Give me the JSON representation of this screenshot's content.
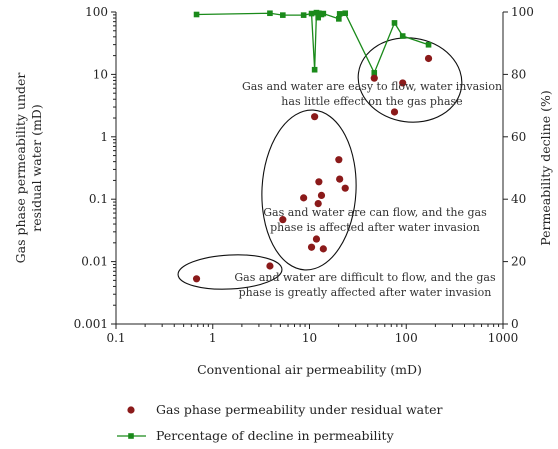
{
  "chart_data": {
    "type": "scatter",
    "xlabel": "Conventional air permeability (mD)",
    "ylabel_left": [
      "Gas phase permeability under",
      "residual water (mD)"
    ],
    "ylabel_right": "Permeability decline (%)",
    "x_scale": "log",
    "y_scale_left": "log",
    "xlim": [
      0.1,
      1000
    ],
    "ylim_left": [
      0.001,
      100
    ],
    "ylim_right": [
      0,
      100
    ],
    "x_ticks": [
      "0.1",
      "1",
      "10",
      "100",
      "1000"
    ],
    "y_ticks_left": [
      "0.001",
      "0.01",
      "0.1",
      "1",
      "10",
      "100"
    ],
    "y_ticks_right": [
      "0",
      "20",
      "40",
      "60",
      "80",
      "100"
    ],
    "grid": false,
    "legend_position": "bottom",
    "series": [
      {
        "name": "Gas phase permeability under residual water",
        "color": "#8b1a1a",
        "marker": "circle",
        "axis": "left",
        "points": [
          {
            "x": 0.68,
            "y": 0.0053
          },
          {
            "x": 3.9,
            "y": 0.0085
          },
          {
            "x": 5.3,
            "y": 0.047
          },
          {
            "x": 8.7,
            "y": 0.105
          },
          {
            "x": 10.5,
            "y": 0.017
          },
          {
            "x": 11.3,
            "y": 2.1
          },
          {
            "x": 11.8,
            "y": 0.023
          },
          {
            "x": 12.3,
            "y": 0.085
          },
          {
            "x": 12.5,
            "y": 0.19
          },
          {
            "x": 13.3,
            "y": 0.115
          },
          {
            "x": 13.9,
            "y": 0.016
          },
          {
            "x": 20.1,
            "y": 0.43
          },
          {
            "x": 20.5,
            "y": 0.21
          },
          {
            "x": 23.4,
            "y": 0.15
          },
          {
            "x": 46.7,
            "y": 8.7
          },
          {
            "x": 75.6,
            "y": 2.5
          },
          {
            "x": 91.9,
            "y": 7.3
          },
          {
            "x": 170.0,
            "y": 18.0
          }
        ]
      },
      {
        "name": "Percentage of decline in permeability",
        "color": "#1a8a1a",
        "marker": "square",
        "axis": "right",
        "points": [
          {
            "x": 0.68,
            "y": 99.2
          },
          {
            "x": 3.9,
            "y": 99.6
          },
          {
            "x": 5.3,
            "y": 99.0
          },
          {
            "x": 8.7,
            "y": 99.0
          },
          {
            "x": 10.5,
            "y": 99.5
          },
          {
            "x": 11.3,
            "y": 81.5
          },
          {
            "x": 11.8,
            "y": 99.8
          },
          {
            "x": 12.3,
            "y": 98.2
          },
          {
            "x": 12.5,
            "y": 99.6
          },
          {
            "x": 13.3,
            "y": 99.2
          },
          {
            "x": 13.9,
            "y": 99.5
          },
          {
            "x": 20.1,
            "y": 97.8
          },
          {
            "x": 20.5,
            "y": 99.4
          },
          {
            "x": 23.4,
            "y": 99.6
          },
          {
            "x": 46.7,
            "y": 80.5
          },
          {
            "x": 75.6,
            "y": 96.5
          },
          {
            "x": 91.9,
            "y": 92.3
          },
          {
            "x": 170.0,
            "y": 89.5
          }
        ]
      }
    ],
    "annotations": [
      {
        "lines": [
          "Gas and water are easy to flow, water invasion",
          "has little effect on the gas phase"
        ]
      },
      {
        "lines": [
          "Gas and water are can flow, and the gas",
          "phase is affected after water invasion"
        ]
      },
      {
        "lines": [
          "Gas and water are difficult to flow, and the gas",
          "phase is greatly affected after water invasion"
        ]
      }
    ]
  }
}
